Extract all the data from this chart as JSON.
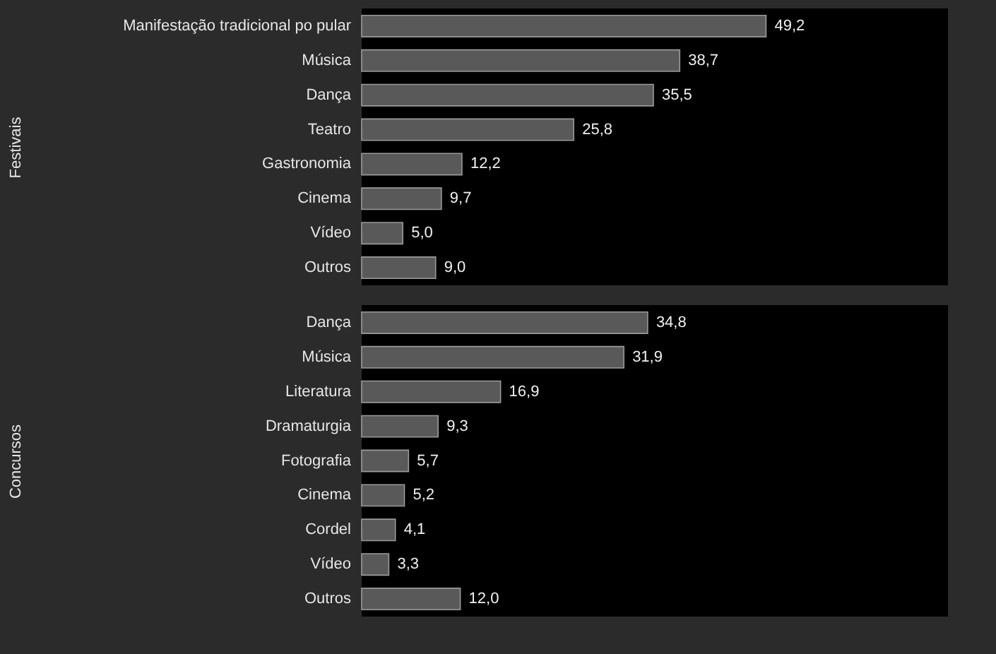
{
  "chart_data": [
    {
      "type": "bar",
      "orientation": "horizontal",
      "ylabel": "Festivais",
      "categories": [
        "Manifestação tradicional po pular",
        "Música",
        "Dança",
        "Teatro",
        "Gastronomia",
        "Cinema",
        "Vídeo",
        "Outros"
      ],
      "values": [
        49.2,
        38.7,
        35.5,
        25.8,
        12.2,
        9.7,
        5.0,
        9.0
      ],
      "color": "#595959",
      "value_labels": [
        "49,2",
        "38,7",
        "35,5",
        "25,8",
        "12,2",
        "9,7",
        "5,0",
        "9,0"
      ]
    },
    {
      "type": "bar",
      "orientation": "horizontal",
      "ylabel": "Concursos",
      "categories": [
        "Dança",
        "Música",
        "Literatura",
        "Dramaturgia",
        "Fotografia",
        "Cinema",
        "Cordel",
        "Vídeo",
        "Outros"
      ],
      "values": [
        34.8,
        31.9,
        16.9,
        9.3,
        5.7,
        5.2,
        4.1,
        3.3,
        12.0
      ],
      "color": "#595959",
      "value_labels": [
        "34,8",
        "31,9",
        "16,9",
        "9,3",
        "5,7",
        "5,2",
        "4,1",
        "3,3",
        "12,0"
      ]
    }
  ]
}
